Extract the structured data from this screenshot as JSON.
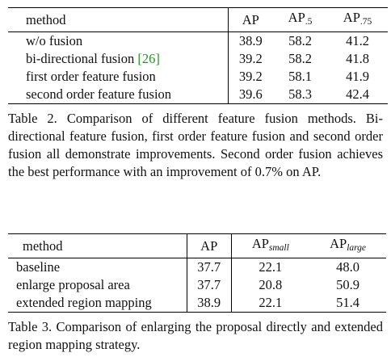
{
  "table2": {
    "headers": {
      "method": "method",
      "ap": "AP",
      "ap50_base": "AP",
      "ap50_sub": ".5",
      "ap75_base": "AP",
      "ap75_sub": ".75"
    },
    "rows": [
      {
        "method": "w/o fusion",
        "cite": "",
        "ap": "38.9",
        "ap50": "58.2",
        "ap75": "41.2"
      },
      {
        "method": "bi-directional fusion ",
        "cite": "[26]",
        "ap": "39.2",
        "ap50": "58.2",
        "ap75": "41.8"
      },
      {
        "method": "first order feature fusion",
        "cite": "",
        "ap": "39.2",
        "ap50": "58.1",
        "ap75": "41.9"
      },
      {
        "method": "second order feature fusion",
        "cite": "",
        "ap": "39.6",
        "ap50": "58.3",
        "ap75": "42.4"
      }
    ],
    "caption": "Table 2. Comparison of different feature fusion methods. Bi-directional feature fusion, first order feature fusion and second order fusion all demonstrate improvements. Second order fusion achieves the best performance with an improvement of 0.7% on AP."
  },
  "table3": {
    "headers": {
      "method": "method",
      "ap": "AP",
      "ap_small_base": "AP",
      "ap_small_sub": "small",
      "ap_large_base": "AP",
      "ap_large_sub": "large"
    },
    "rows": [
      {
        "method": "baseline",
        "ap": "37.7",
        "ap_small": "22.1",
        "ap_large": "48.0"
      },
      {
        "method": "enlarge proposal area",
        "ap": "37.7",
        "ap_small": "20.8",
        "ap_large": "50.9"
      },
      {
        "method": "extended region mapping",
        "ap": "38.9",
        "ap_small": "22.1",
        "ap_large": "51.4"
      }
    ],
    "caption": "Table 3. Comparison of enlarging the proposal directly and extended region mapping strategy."
  },
  "colors": {
    "citation": "#1a9e1a",
    "text": "#111111",
    "rule": "#000000"
  }
}
